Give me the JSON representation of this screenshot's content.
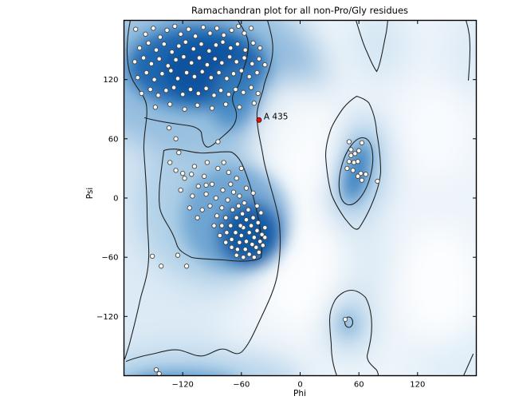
{
  "chart_data": {
    "type": "scatter",
    "title": "Ramachandran plot for all non-Pro/Gly residues",
    "xlabel": "Phi",
    "ylabel": "Psi",
    "xlim": [
      -180,
      180
    ],
    "ylim": [
      -180,
      180
    ],
    "xticks": [
      -120,
      -60,
      0,
      60,
      120
    ],
    "yticks": [
      -120,
      -60,
      0,
      60,
      120
    ],
    "grid": false,
    "legend": "none",
    "point_style": {
      "fill": "#fdfcf6",
      "stroke": "#474747",
      "radius": 2.7
    },
    "outlier": {
      "label": "A 435",
      "phi": -42,
      "psi": 79,
      "color": "#e3150b"
    },
    "points": [
      [
        -168,
        171
      ],
      [
        -158,
        166
      ],
      [
        -150,
        172
      ],
      [
        -143,
        163
      ],
      [
        -136,
        170
      ],
      [
        -128,
        174
      ],
      [
        -122,
        166
      ],
      [
        -114,
        171
      ],
      [
        -107,
        164
      ],
      [
        -99,
        173
      ],
      [
        -92,
        167
      ],
      [
        -85,
        172
      ],
      [
        -78,
        165
      ],
      [
        -70,
        170
      ],
      [
        -63,
        174
      ],
      [
        -57,
        167
      ],
      [
        -50,
        172
      ],
      [
        -164,
        152
      ],
      [
        -155,
        157
      ],
      [
        -147,
        150
      ],
      [
        -139,
        156
      ],
      [
        -131,
        148
      ],
      [
        -124,
        154
      ],
      [
        -117,
        158
      ],
      [
        -109,
        151
      ],
      [
        -101,
        156
      ],
      [
        -93,
        149
      ],
      [
        -86,
        155
      ],
      [
        -79,
        158
      ],
      [
        -71,
        152
      ],
      [
        -64,
        156
      ],
      [
        -56,
        150
      ],
      [
        -48,
        157
      ],
      [
        -41,
        152
      ],
      [
        -169,
        138
      ],
      [
        -160,
        142
      ],
      [
        -152,
        136
      ],
      [
        -144,
        141
      ],
      [
        -135,
        134
      ],
      [
        -127,
        140
      ],
      [
        -119,
        143
      ],
      [
        -111,
        137
      ],
      [
        -103,
        142
      ],
      [
        -95,
        135
      ],
      [
        -87,
        141
      ],
      [
        -80,
        137
      ],
      [
        -72,
        143
      ],
      [
        -65,
        138
      ],
      [
        -57,
        142
      ],
      [
        -49,
        136
      ],
      [
        -42,
        141
      ],
      [
        -36,
        135
      ],
      [
        -166,
        122
      ],
      [
        -157,
        127
      ],
      [
        -149,
        120
      ],
      [
        -141,
        126
      ],
      [
        -132,
        129
      ],
      [
        -125,
        121
      ],
      [
        -116,
        127
      ],
      [
        -108,
        123
      ],
      [
        -100,
        128
      ],
      [
        -91,
        122
      ],
      [
        -83,
        127
      ],
      [
        -75,
        121
      ],
      [
        -68,
        126
      ],
      [
        -60,
        129
      ],
      [
        -52,
        123
      ],
      [
        -44,
        127
      ],
      [
        -162,
        106
      ],
      [
        -153,
        110
      ],
      [
        -145,
        104
      ],
      [
        -137,
        109
      ],
      [
        -129,
        112
      ],
      [
        -120,
        105
      ],
      [
        -112,
        110
      ],
      [
        -104,
        106
      ],
      [
        -96,
        111
      ],
      [
        -88,
        104
      ],
      [
        -81,
        109
      ],
      [
        -73,
        105
      ],
      [
        -66,
        110
      ],
      [
        -58,
        107
      ],
      [
        -50,
        112
      ],
      [
        -43,
        106
      ],
      [
        -148,
        92
      ],
      [
        -133,
        95
      ],
      [
        -118,
        90
      ],
      [
        -105,
        94
      ],
      [
        -90,
        91
      ],
      [
        -76,
        95
      ],
      [
        -62,
        92
      ],
      [
        -47,
        96
      ],
      [
        -134,
        71
      ],
      [
        -127,
        60
      ],
      [
        -124,
        46
      ],
      [
        -133,
        36
      ],
      [
        -120,
        25
      ],
      [
        -111,
        24
      ],
      [
        -84,
        57
      ],
      [
        -78,
        36
      ],
      [
        -96,
        13
      ],
      [
        -151,
        -59
      ],
      [
        -142,
        -69
      ],
      [
        -125,
        -58
      ],
      [
        -116,
        -69
      ],
      [
        -58,
        -30
      ],
      [
        -52,
        -35
      ],
      [
        -47,
        -40
      ],
      [
        -55,
        -44
      ],
      [
        -60,
        -38
      ],
      [
        -50,
        -28
      ],
      [
        -44,
        -33
      ],
      [
        -49,
        -47
      ],
      [
        -56,
        -52
      ],
      [
        -62,
        -45
      ],
      [
        -45,
        -50
      ],
      [
        -52,
        -57
      ],
      [
        -58,
        -60
      ],
      [
        -64,
        -52
      ],
      [
        -41,
        -44
      ],
      [
        -39,
        -37
      ],
      [
        -43,
        -25
      ],
      [
        -48,
        -20
      ],
      [
        -55,
        -22
      ],
      [
        -61,
        -28
      ],
      [
        -66,
        -35
      ],
      [
        -70,
        -42
      ],
      [
        -65,
        -58
      ],
      [
        -47,
        -60
      ],
      [
        -42,
        -55
      ],
      [
        -38,
        -48
      ],
      [
        -36,
        -40
      ],
      [
        -53,
        -12
      ],
      [
        -59,
        -16
      ],
      [
        -65,
        -20
      ],
      [
        -71,
        -28
      ],
      [
        -75,
        -35
      ],
      [
        -70,
        -50
      ],
      [
        -57,
        -5
      ],
      [
        -63,
        -8
      ],
      [
        -69,
        -12
      ],
      [
        -76,
        -20
      ],
      [
        -80,
        -28
      ],
      [
        -82,
        -38
      ],
      [
        -76,
        -45
      ],
      [
        -36,
        -30
      ],
      [
        -62,
        2
      ],
      [
        -68,
        6
      ],
      [
        -74,
        -2
      ],
      [
        -80,
        -10
      ],
      [
        -85,
        -18
      ],
      [
        -88,
        -28
      ],
      [
        -92,
        -8
      ],
      [
        -86,
        0
      ],
      [
        -79,
        8
      ],
      [
        -71,
        14
      ],
      [
        -65,
        20
      ],
      [
        -90,
        14
      ],
      [
        -96,
        4
      ],
      [
        -100,
        -12
      ],
      [
        -105,
        -20
      ],
      [
        -98,
        22
      ],
      [
        -104,
        12
      ],
      [
        -110,
        2
      ],
      [
        -113,
        -10
      ],
      [
        -118,
        20
      ],
      [
        -122,
        8
      ],
      [
        -127,
        28
      ],
      [
        -108,
        32
      ],
      [
        -95,
        36
      ],
      [
        -84,
        30
      ],
      [
        -73,
        26
      ],
      [
        -60,
        30
      ],
      [
        -55,
        10
      ],
      [
        -48,
        5
      ],
      [
        -44,
        -8
      ],
      [
        -40,
        -15
      ],
      [
        50,
        57
      ],
      [
        52,
        49
      ],
      [
        50,
        37
      ],
      [
        55,
        36
      ],
      [
        59,
        37
      ],
      [
        63,
        56
      ],
      [
        62,
        25
      ],
      [
        59,
        22
      ],
      [
        67,
        24
      ],
      [
        63,
        18
      ],
      [
        52,
        43
      ],
      [
        48,
        30
      ],
      [
        56,
        45
      ],
      [
        60,
        48
      ],
      [
        54,
        28
      ],
      [
        79,
        17
      ],
      [
        46,
        -123
      ],
      [
        -147,
        -174
      ],
      [
        -144,
        -178
      ]
    ]
  },
  "colors": {
    "contour_line": "#222222",
    "plot_border": "#000000",
    "plot_background": "#edf4fa",
    "density_darkest": "#0b4f9e",
    "density_dark": "#1763ae",
    "density_mid": "#4289c5",
    "density_light": "#9dc4e1",
    "density_faint": "#d7e7f4",
    "tick_color": "#000000"
  }
}
